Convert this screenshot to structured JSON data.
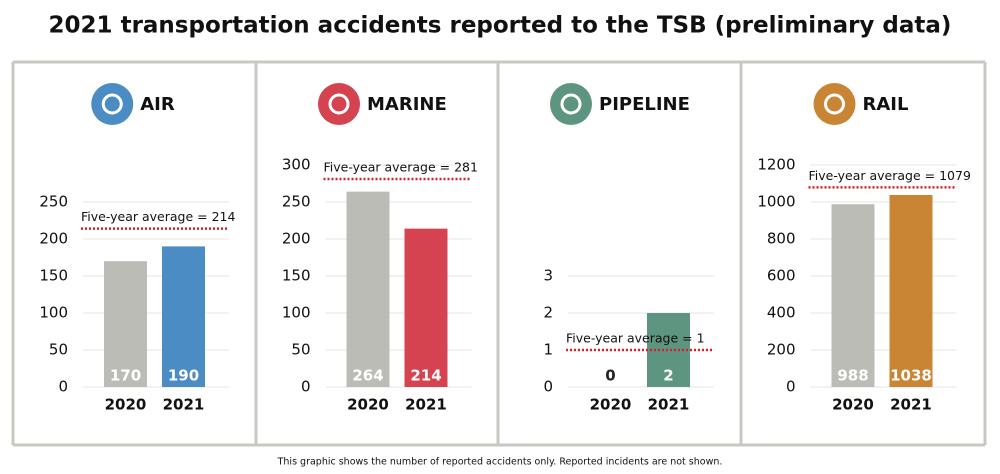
{
  "title": "2021 transportation accidents reported to the TSB (preliminary data)",
  "footnote": "This graphic shows the number of reported accidents only. Reported incidents are not shown.",
  "chart_data": [
    {
      "type": "bar",
      "title": "AIR",
      "categories": [
        "2020",
        "2021"
      ],
      "values": [
        170,
        190
      ],
      "colors": [
        "#bcbcb6",
        "#4a8cc3"
      ],
      "ylim": [
        0,
        250
      ],
      "yticks": [
        0,
        50,
        100,
        150,
        200,
        250
      ],
      "grid": true,
      "average": 214,
      "average_label": "Five-year average = 214",
      "average_color": "#d3222a"
    },
    {
      "type": "bar",
      "title": "MARINE",
      "categories": [
        "2020",
        "2021"
      ],
      "values": [
        264,
        214
      ],
      "colors": [
        "#bcbcb6",
        "#d4434f"
      ],
      "ylim": [
        0,
        300
      ],
      "yticks": [
        0,
        50,
        100,
        150,
        200,
        250,
        300
      ],
      "grid": true,
      "average": 281,
      "average_label": "Five-year average = 281",
      "average_color": "#d3222a"
    },
    {
      "type": "bar",
      "title": "PIPELINE",
      "categories": [
        "2020",
        "2021"
      ],
      "values": [
        0,
        2
      ],
      "colors": [
        "#bcbcb6",
        "#5e9580"
      ],
      "ylim": [
        0,
        3
      ],
      "yticks": [
        0,
        1,
        2,
        3
      ],
      "grid": true,
      "average": 1,
      "average_label": "Five-year average = 1",
      "average_color": "#d3222a"
    },
    {
      "type": "bar",
      "title": "RAIL",
      "categories": [
        "2020",
        "2021"
      ],
      "values": [
        988,
        1038
      ],
      "colors": [
        "#bcbcb6",
        "#c98534"
      ],
      "ylim": [
        0,
        1200
      ],
      "yticks": [
        0,
        200,
        400,
        600,
        800,
        1000,
        1200
      ],
      "grid": true,
      "average": 1079,
      "average_label": "Five-year average = 1079",
      "average_color": "#d3222a"
    }
  ]
}
